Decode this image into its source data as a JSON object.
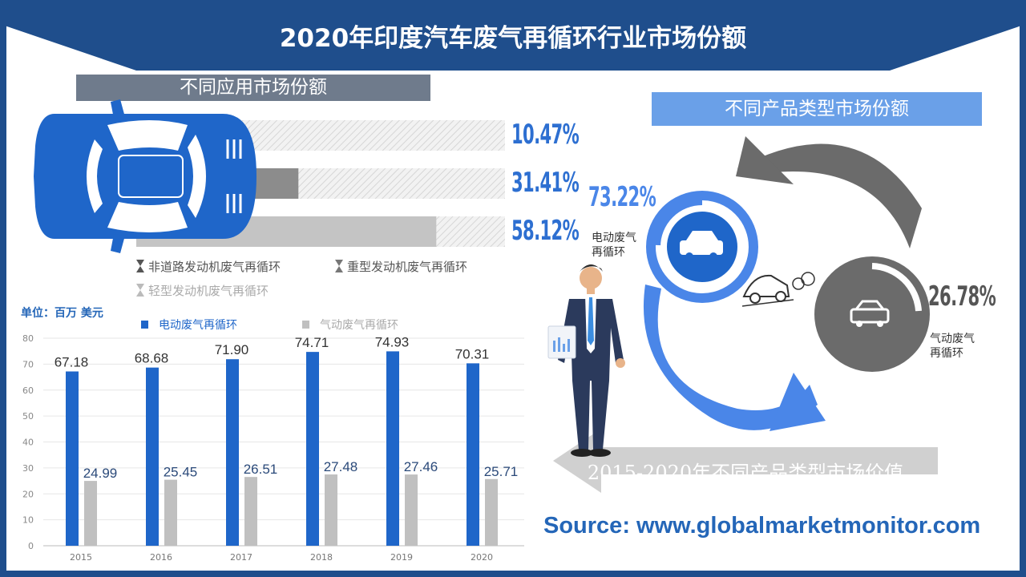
{
  "title": "2020年印度汽车废气再循环行业市场份额",
  "application_section": {
    "header": "不同应用市场份额",
    "bars": [
      {
        "label": "非道路发动机废气再循环",
        "share": 10.47,
        "display": "10.47%",
        "color": "#6b6b6b"
      },
      {
        "label": "重型发动机废气再循环",
        "share": 31.41,
        "display": "31.41%",
        "color": "#8c8c8c"
      },
      {
        "label": "轻型发动机废气再循环",
        "share": 58.12,
        "display": "58.12%",
        "color": "#c4c4c4"
      }
    ]
  },
  "product_section": {
    "header": "不同产品类型市场份额",
    "items": [
      {
        "label": "电动废气再循环",
        "label_line1": "电动废气",
        "label_line2": "再循环",
        "share": 73.22,
        "display": "73.22%",
        "color": "#2d6fd1"
      },
      {
        "label": "气动废气再循环",
        "label_line1": "气动废气",
        "label_line2": "再循环",
        "share": 26.78,
        "display": "26.78%",
        "color": "#555555"
      }
    ]
  },
  "value_title": "2015-2020年不同产品类型市场价值",
  "unit_label": "单位：百万 美元",
  "source": "Source: www.globalmarketmonitor.com",
  "chart_data": {
    "type": "bar",
    "categories": [
      "2015",
      "2016",
      "2017",
      "2018",
      "2019",
      "2020"
    ],
    "series": [
      {
        "name": "电动废气再循环",
        "values": [
          67.18,
          68.68,
          71.9,
          74.71,
          74.93,
          70.31
        ],
        "labels": [
          "67.18",
          "68.68",
          "71.90",
          "74.71",
          "74.93",
          "70.31"
        ],
        "color": "#1f66c9"
      },
      {
        "name": "气动废气再循环",
        "values": [
          24.99,
          25.45,
          26.51,
          27.48,
          27.46,
          25.71
        ],
        "labels": [
          "24.99",
          "25.45",
          "26.51",
          "27.48",
          "27.46",
          "25.71"
        ],
        "color": "#c0c0c0"
      }
    ],
    "ylim": [
      0,
      80
    ],
    "yticks": [
      0,
      10,
      20,
      30,
      40,
      50,
      60,
      70,
      80
    ],
    "grid": true,
    "legend_position": "top"
  }
}
